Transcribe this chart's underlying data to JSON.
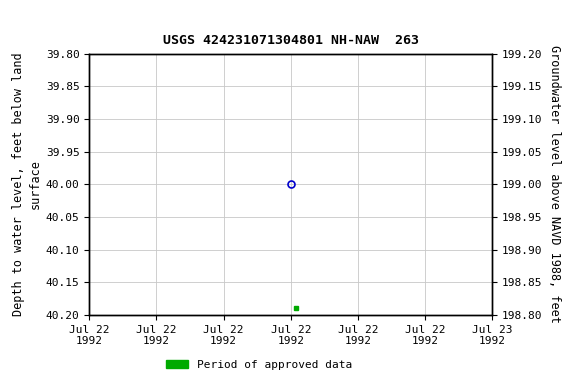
{
  "title": "USGS 424231071304801 NH-NAW  263",
  "ylabel_left": "Depth to water level, feet below land\nsurface",
  "ylabel_right": "Groundwater level above NAVD 1988, feet",
  "ylim_left": [
    40.2,
    39.8
  ],
  "ylim_right": [
    198.8,
    199.2
  ],
  "yticks_left": [
    39.8,
    39.85,
    39.9,
    39.95,
    40.0,
    40.05,
    40.1,
    40.15,
    40.2
  ],
  "yticks_right": [
    199.2,
    199.15,
    199.1,
    199.05,
    199.0,
    198.95,
    198.9,
    198.85,
    198.8
  ],
  "circle_value": 40.0,
  "square_value": 40.19,
  "circle_color": "#0000cc",
  "square_color": "#00aa00",
  "legend_label": "Period of approved data",
  "legend_color": "#00aa00",
  "grid_color": "#c8c8c8",
  "background_color": "#ffffff",
  "title_fontsize": 9.5,
  "label_fontsize": 8.5,
  "tick_fontsize": 8,
  "legend_fontsize": 8
}
